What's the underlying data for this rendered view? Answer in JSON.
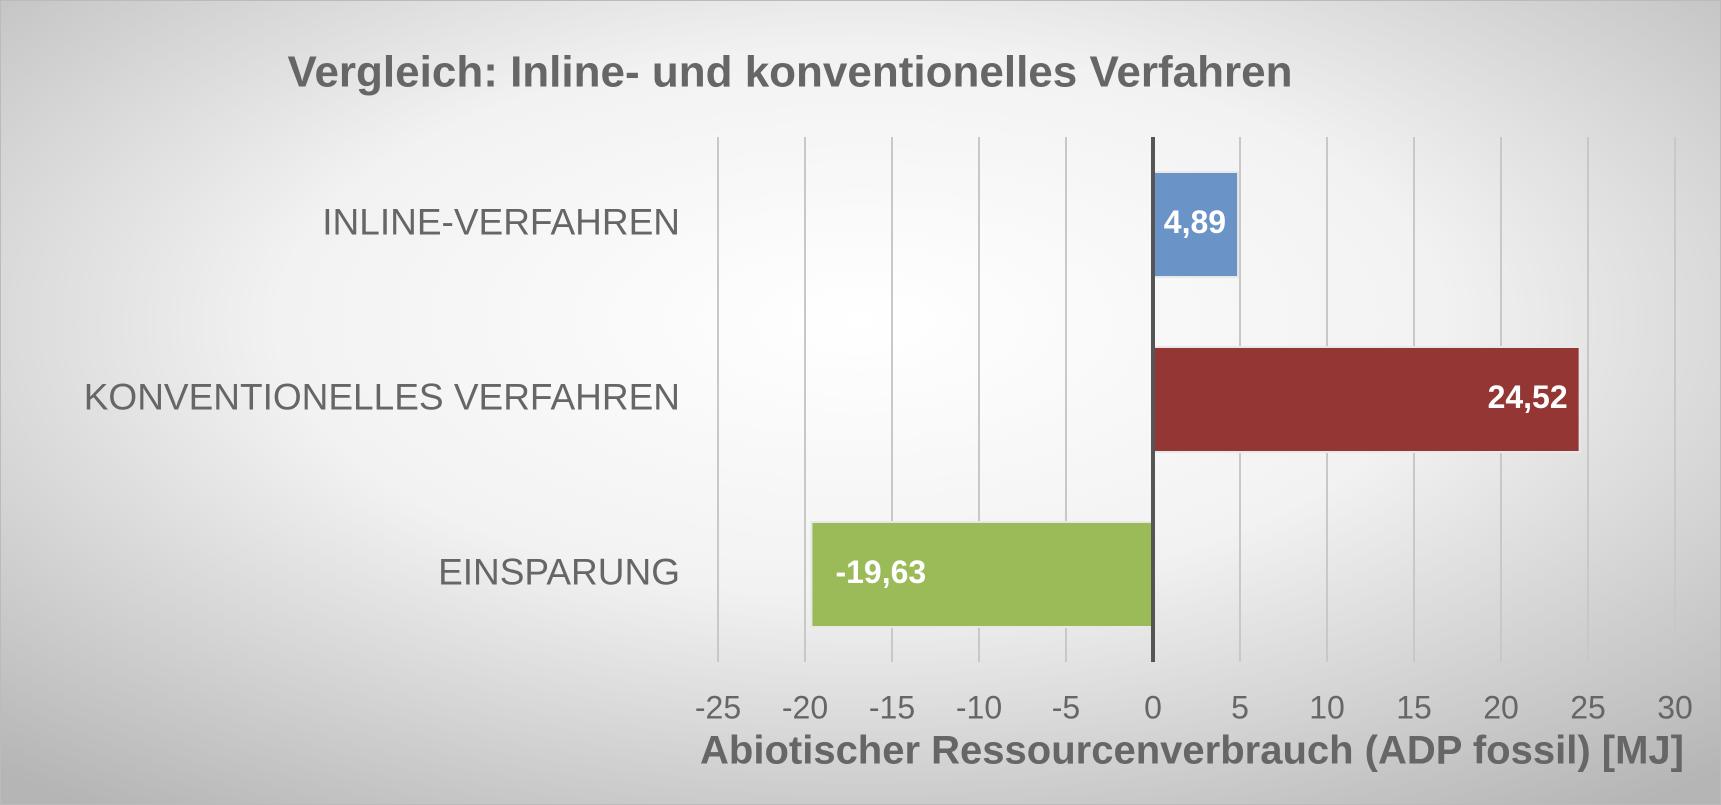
{
  "chart_data": {
    "type": "hbar",
    "title": "Vergleich: Inline- und konventionelles Verfahren",
    "x_label": "Abiotischer Ressourcenverbrauch (ADP fossil) [MJ]",
    "categories": [
      "INLINE-VERFAHREN",
      "KONVENTIONELLES VERFAHREN",
      "EINSPARUNG"
    ],
    "values": [
      4.89,
      24.52,
      -19.63
    ],
    "value_labels": [
      "4,89",
      "24,52",
      "-19,63"
    ],
    "colors": [
      "#6a93c8",
      "#943634",
      "#9bbb59"
    ],
    "xlim": [
      -25,
      30
    ],
    "xticks": [
      -25,
      -20,
      -15,
      -10,
      -5,
      0,
      5,
      10,
      15,
      20,
      25,
      30
    ],
    "grid": true
  }
}
